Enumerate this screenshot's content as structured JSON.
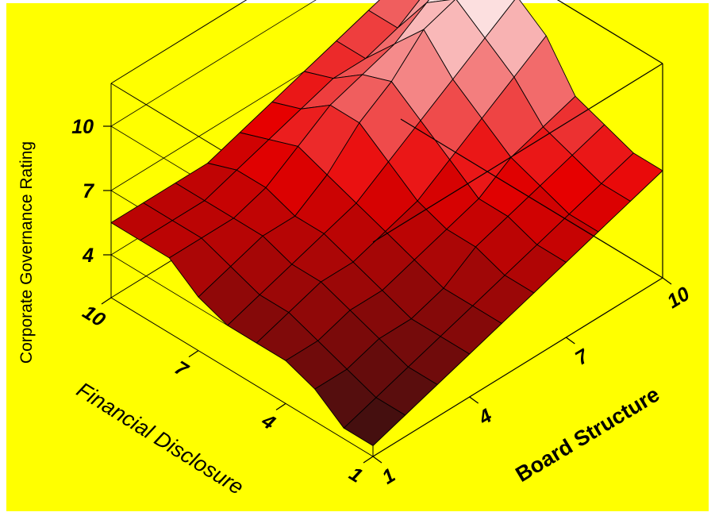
{
  "chart_data": {
    "type": "surface3d",
    "title": "",
    "xlabel": "Board Structure",
    "ylabel": "Financial Disclosure",
    "zlabel": "Corporate Governance Rating",
    "x_ticks": [
      "1",
      "4",
      "7",
      "10"
    ],
    "y_ticks": [
      "1",
      "4",
      "7",
      "10"
    ],
    "z_ticks": [
      "4",
      "7",
      "10"
    ],
    "x_range": [
      1,
      10
    ],
    "y_range": [
      1,
      10
    ],
    "z_range": [
      2,
      12
    ],
    "x": [
      1,
      2,
      3,
      4,
      5,
      6,
      7,
      8,
      9,
      10
    ],
    "y": [
      1,
      2,
      3,
      4,
      5,
      6,
      7,
      8,
      9,
      10
    ],
    "z_rows_by_financial_disclosure": [
      [
        2.5,
        3.0,
        3.5,
        4.0,
        4.5,
        5.0,
        5.5,
        6.0,
        6.5,
        7.0
      ],
      [
        2.5,
        3.0,
        3.5,
        4.0,
        4.5,
        5.0,
        5.5,
        6.0,
        6.5,
        7.0
      ],
      [
        3.5,
        3.5,
        4.0,
        4.0,
        4.5,
        5.5,
        6.0,
        6.5,
        7.0,
        7.5
      ],
      [
        4.0,
        4.0,
        4.5,
        4.5,
        5.0,
        5.5,
        6.0,
        7.0,
        7.5,
        8.0
      ],
      [
        4.0,
        4.5,
        5.0,
        5.0,
        5.5,
        6.0,
        7.0,
        8.0,
        9.0,
        10.0
      ],
      [
        4.0,
        4.5,
        5.0,
        5.5,
        6.0,
        7.0,
        8.0,
        9.0,
        10.0,
        11.0
      ],
      [
        4.5,
        5.0,
        5.5,
        5.5,
        6.5,
        8.0,
        9.0,
        10.5,
        11.0,
        11.5
      ],
      [
        5.5,
        5.5,
        5.5,
        6.0,
        7.0,
        8.0,
        8.5,
        9.0,
        10.0,
        11.0
      ],
      [
        5.5,
        5.5,
        5.5,
        6.0,
        6.5,
        7.0,
        7.5,
        7.5,
        8.0,
        9.0
      ],
      [
        5.5,
        5.5,
        5.5,
        5.5,
        6.0,
        6.5,
        7.0,
        7.5,
        8.0,
        8.5
      ]
    ],
    "grid": true,
    "legend": "none"
  },
  "colors": {
    "background": "#FFFF00",
    "low": "#3A1010",
    "mid": "#E80000",
    "high": "#FFFFFF",
    "mesh": "#000000"
  }
}
